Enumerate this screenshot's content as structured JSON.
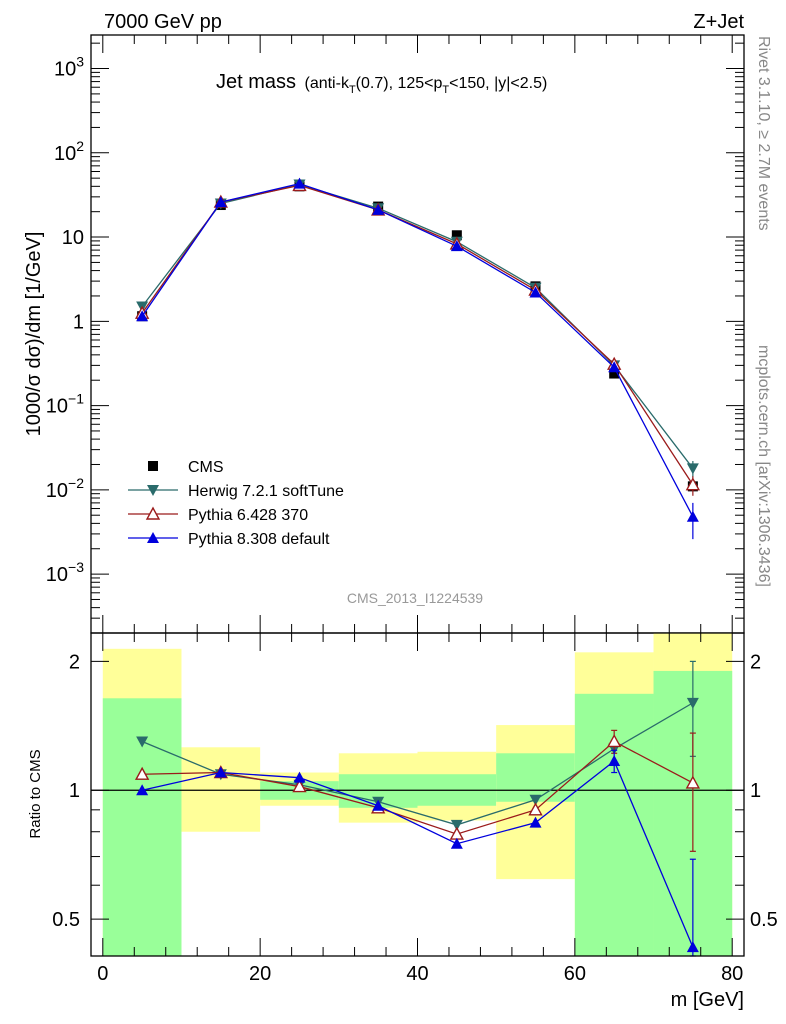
{
  "header": {
    "energy_label": "7000 GeV pp",
    "process_label": "Z+Jet"
  },
  "side_labels": {
    "rivet": "Rivet 3.1.10, ≥ 2.7M events",
    "mcplots": "mcplots.cern.ch [arXiv:1306.3436]"
  },
  "watermark": "CMS_2013_I1224539",
  "chart_data": [
    {
      "type": "scatter",
      "panel": "main",
      "title": "Jet mass",
      "subtitle_parts": [
        "(anti-k",
        "T",
        "(0.7), 125<p",
        "T",
        "<150, |y|<2.5)"
      ],
      "ylabel": "1000/σ dσ)/dm [1/GeV]",
      "yscale": "log",
      "ylim": [
        0.0002,
        2500
      ],
      "xlim": [
        -1.5,
        81.5
      ],
      "y_tick_labels": [
        {
          "value": 1000,
          "base": "10",
          "exp": "3"
        },
        {
          "value": 100,
          "base": "10",
          "exp": "2"
        },
        {
          "value": 10,
          "base": "10",
          "exp": ""
        },
        {
          "value": 1,
          "base": "1",
          "exp": ""
        },
        {
          "value": 0.1,
          "base": "10",
          "exp": "−1"
        },
        {
          "value": 0.01,
          "base": "10",
          "exp": "−2"
        },
        {
          "value": 0.001,
          "base": "10",
          "exp": "−3"
        }
      ],
      "x": [
        5,
        15,
        25,
        35,
        45,
        55,
        65,
        75
      ],
      "legend_position": "lower-left",
      "series": [
        {
          "name": "CMS",
          "color": "#000000",
          "marker": "square",
          "values": [
            1.15,
            24,
            40,
            23,
            10.5,
            2.6,
            0.24,
            0.011
          ]
        },
        {
          "name": "Herwig 7.2.1 softTune",
          "color": "#2a6b6b",
          "marker": "triangle-down",
          "values": [
            1.5,
            25,
            42,
            22,
            8.8,
            2.5,
            0.3,
            0.018
          ],
          "err": [
            0,
            0,
            0,
            0,
            0,
            0,
            0,
            0.004
          ]
        },
        {
          "name": "Pythia 6.428 370",
          "color": "#9b1b1b",
          "marker": "triangle-up-open",
          "values": [
            1.25,
            26,
            41,
            21,
            8.3,
            2.35,
            0.31,
            0.0115
          ],
          "err": [
            0,
            0,
            0,
            0,
            0,
            0,
            0,
            0.003
          ]
        },
        {
          "name": "Pythia 8.308 default",
          "color": "#0000dd",
          "marker": "triangle-up",
          "values": [
            1.15,
            26,
            43,
            21,
            7.8,
            2.2,
            0.285,
            0.0048
          ],
          "err": [
            0,
            0,
            0,
            0,
            0,
            0,
            0,
            0.0022
          ]
        }
      ]
    },
    {
      "type": "scatter",
      "panel": "ratio",
      "ylabel": "Ratio to CMS",
      "xlabel": "m [GeV]",
      "yscale": "log",
      "ylim": [
        0.41,
        2.33
      ],
      "y_tick_labels": [
        {
          "value": 2,
          "label": "2"
        },
        {
          "value": 1,
          "label": "1"
        },
        {
          "value": 0.5,
          "label": "0.5"
        }
      ],
      "x_ticks": [
        0,
        20,
        40,
        60,
        80
      ],
      "bins": [
        [
          0,
          10
        ],
        [
          10,
          20
        ],
        [
          20,
          30
        ],
        [
          30,
          40
        ],
        [
          40,
          50
        ],
        [
          50,
          60
        ],
        [
          60,
          70
        ],
        [
          70,
          80
        ]
      ],
      "band_green": [
        [
          0.41,
          1.64
        ],
        [
          1.09,
          1.09
        ],
        [
          0.95,
          1.05
        ],
        [
          0.91,
          1.09
        ],
        [
          0.92,
          1.09
        ],
        [
          0.94,
          1.22
        ],
        [
          0.41,
          1.68
        ],
        [
          0.41,
          1.9
        ]
      ],
      "band_yellow": [
        [
          0.41,
          2.14
        ],
        [
          0.8,
          1.26
        ],
        [
          0.92,
          1.1
        ],
        [
          0.84,
          1.22
        ],
        [
          0.85,
          1.23
        ],
        [
          0.62,
          1.42
        ],
        [
          0.41,
          2.1
        ],
        [
          0.41,
          2.33
        ]
      ],
      "x": [
        5,
        15,
        25,
        35,
        45,
        55,
        65,
        75
      ],
      "series": [
        {
          "name": "Herwig 7.2.1 softTune",
          "color": "#2a6b6b",
          "marker": "triangle-down",
          "values": [
            1.3,
            1.09,
            1.03,
            0.94,
            0.83,
            0.95,
            1.25,
            1.6
          ],
          "err": [
            0,
            0,
            0,
            0,
            0,
            0,
            0,
            0.4
          ]
        },
        {
          "name": "Pythia 6.428 370",
          "color": "#9b1b1b",
          "marker": "triangle-up-open",
          "values": [
            1.09,
            1.1,
            1.02,
            0.91,
            0.79,
            0.9,
            1.3,
            1.04
          ],
          "err": [
            0,
            0,
            0,
            0,
            0,
            0,
            0.08,
            0.32
          ]
        },
        {
          "name": "Pythia 8.308 default",
          "color": "#0000dd",
          "marker": "triangle-up",
          "values": [
            1.0,
            1.1,
            1.07,
            0.92,
            0.75,
            0.84,
            1.17,
            0.43
          ],
          "err": [
            0,
            0,
            0,
            0,
            0,
            0,
            0.07,
            0.26
          ]
        }
      ]
    }
  ]
}
